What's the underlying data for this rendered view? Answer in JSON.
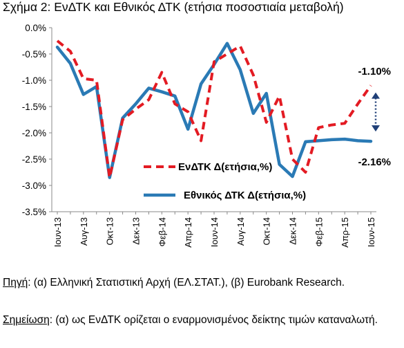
{
  "title": "Σχήμα 2: ΕνΔΤΚ και Εθνικός ΔΤΚ (ετήσια ποσοστιαία μεταβολή)",
  "chart_data": {
    "type": "line",
    "ylim": [
      -3.5,
      0.0
    ],
    "yticks": [
      "0.0%",
      "-0.5%",
      "-1.0%",
      "-1.5%",
      "-2.0%",
      "-2.5%",
      "-3.0%",
      "-3.5%"
    ],
    "ytick_values": [
      0.0,
      -0.5,
      -1.0,
      -1.5,
      -2.0,
      -2.5,
      -3.0,
      -3.5
    ],
    "x_labels": [
      "Ιουν-13",
      "Αυγ-13",
      "Οκτ-13",
      "Δεκ-13",
      "Φεβ-14",
      "Απρ-14",
      "Ιουν-14",
      "Αυγ-14",
      "Οκτ-14",
      "Δεκ-14",
      "Φεβ-15",
      "Απρ-15",
      "Ιουν-15"
    ],
    "x": [
      "Ιουν-13",
      "Ιουλ-13",
      "Αυγ-13",
      "Σεπ-13",
      "Οκτ-13",
      "Νοε-13",
      "Δεκ-13",
      "Ιαν-14",
      "Φεβ-14",
      "Μαρ-14",
      "Απρ-14",
      "Μαϊ-14",
      "Ιουν-14",
      "Ιουλ-14",
      "Αυγ-14",
      "Σεπ-14",
      "Οκτ-14",
      "Νοε-14",
      "Δεκ-14",
      "Ιαν-15",
      "Φεβ-15",
      "Μαρ-15",
      "Απρ-15",
      "Μαϊ-15",
      "Ιουν-15"
    ],
    "series": [
      {
        "name": "ΕνΔΤΚ Δ(ετήσια,%)",
        "color": "#e31b23",
        "dash": true,
        "values": [
          -0.25,
          -0.45,
          -0.97,
          -1.0,
          -2.85,
          -1.75,
          -1.55,
          -1.37,
          -0.85,
          -1.45,
          -1.6,
          -2.15,
          -0.65,
          -0.5,
          -0.35,
          -0.9,
          -1.8,
          -1.3,
          -2.5,
          -2.75,
          -1.9,
          -1.85,
          -1.82,
          -1.45,
          -1.1
        ]
      },
      {
        "name": "Εθνικός ΔΤΚ Δ(ετήσια,%)",
        "color": "#2a7ab5",
        "dash": false,
        "values": [
          -0.37,
          -0.68,
          -1.27,
          -1.12,
          -2.85,
          -1.72,
          -1.45,
          -1.15,
          -1.22,
          -1.3,
          -1.93,
          -1.07,
          -0.7,
          -0.3,
          -0.8,
          -1.63,
          -1.25,
          -2.6,
          -2.83,
          -2.17,
          -2.15,
          -2.13,
          -2.12,
          -2.15,
          -2.16
        ]
      }
    ],
    "annotations": [
      "-1.10%",
      "-2.16%"
    ],
    "grid": false,
    "legend_position": "lower-right"
  },
  "source": {
    "label": "Πηγή",
    "text": ": (α) Ελληνική Στατιστική Αρχή (ΕΛ.ΣΤΑΤ.), (β) Eurobank Research."
  },
  "note": {
    "label": "Σημείωση",
    "text": ": (α) ως ΕνΔΤΚ ορίζεται ο εναρμονισμένος δείκτης τιμών καταναλωτή."
  }
}
